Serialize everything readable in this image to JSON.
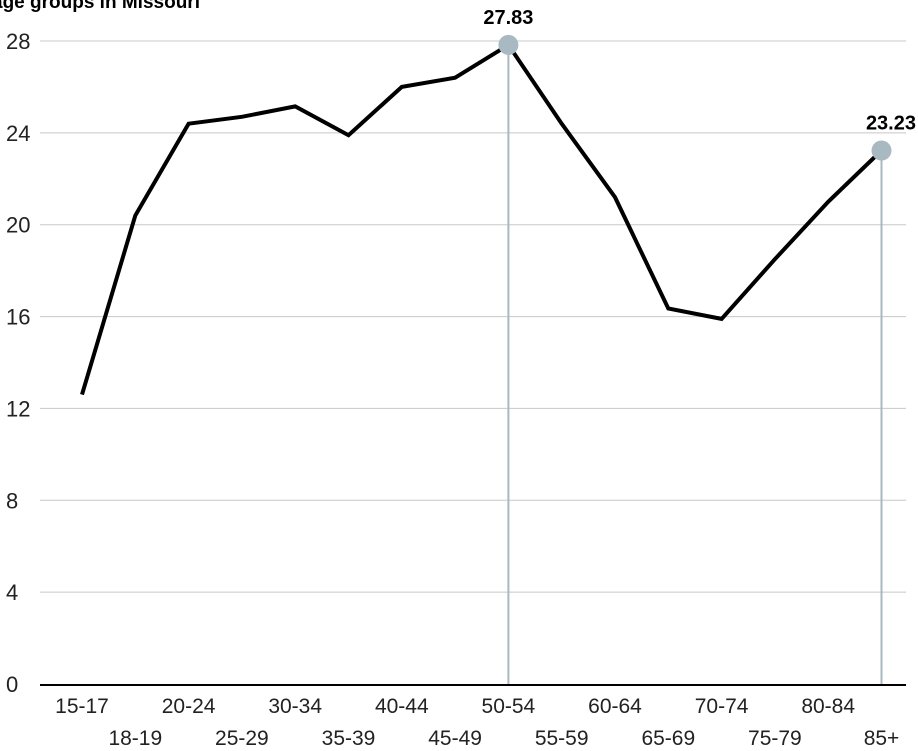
{
  "chart_data": {
    "type": "line",
    "title": "age groups in Missouri",
    "xlabel": "",
    "ylabel": "",
    "ylim": [
      0,
      28
    ],
    "yticks": [
      "0",
      "4",
      "8",
      "12",
      "16",
      "20",
      "24",
      "28"
    ],
    "grid": true,
    "categories": [
      "15-17",
      "18-19",
      "20-24",
      "25-29",
      "30-34",
      "35-39",
      "40-44",
      "45-49",
      "50-54",
      "55-59",
      "60-64",
      "65-69",
      "70-74",
      "75-79",
      "80-84",
      "85+"
    ],
    "series": [
      {
        "values": [
          12.6,
          20.4,
          24.4,
          24.7,
          25.15,
          23.9,
          26.0,
          26.4,
          27.83,
          24.4,
          21.2,
          16.35,
          15.9,
          18.5,
          21.0,
          23.23
        ]
      }
    ],
    "highlights": [
      {
        "category": "50-54",
        "value": 27.83,
        "label": "27.83"
      },
      {
        "category": "85+",
        "value": 23.23,
        "label": "23.23"
      }
    ],
    "colors": {
      "line": "#000000",
      "highlight": "#a9b9c1",
      "grid": "#c8c8c8"
    }
  }
}
